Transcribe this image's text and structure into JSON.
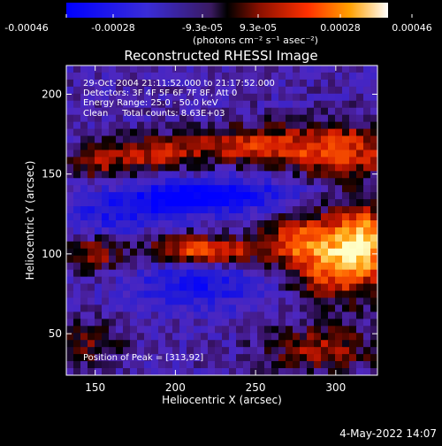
{
  "colorbar": {
    "ticks": [
      "-0.00046",
      "-0.00028",
      "-9.3e-05",
      "9.3e-05",
      "0.00028",
      "0.00046"
    ],
    "units": "(photons cm⁻² s⁻¹ asec⁻²)"
  },
  "title": "Reconstructed RHESSI Image",
  "annotations": [
    "29-Oct-2004 21:11:52.000 to 21:17:52.000",
    "Detectors: 3F 4F 5F 6F 7F 8F, Att 0",
    "Energy Range: 25.0 - 50.0 keV",
    "Clean     Total counts: 8.63E+03"
  ],
  "peak": "Position of Peak = [313,92]",
  "timestamp": "4-May-2022 14:07",
  "chart_data": {
    "type": "heatmap",
    "title": "Reconstructed RHESSI Image",
    "xlabel": "Heliocentric X (arcsec)",
    "ylabel": "Heliocentric Y (arcsec)",
    "xlim": [
      132,
      326
    ],
    "ylim": [
      24,
      218
    ],
    "xticks": [
      150,
      200,
      250,
      300
    ],
    "yticks": [
      50,
      100,
      150,
      200
    ],
    "xtick_labels": [
      "150",
      "200",
      "250",
      "300"
    ],
    "ytick_labels": [
      "50",
      "100",
      "150",
      "200"
    ],
    "colorbar_range": [
      -0.00046,
      0.00046
    ],
    "peak_position": [
      313,
      92
    ],
    "features": [
      {
        "x": 300,
        "y": 98,
        "sx": 20,
        "sy": 18,
        "amp": 1.0
      },
      {
        "x": 318,
        "y": 110,
        "sx": 10,
        "sy": 16,
        "amp": 0.75
      },
      {
        "x": 272,
        "y": 110,
        "sx": 14,
        "sy": 10,
        "amp": 0.5
      },
      {
        "x": 228,
        "y": 101,
        "sx": 22,
        "sy": 6,
        "amp": 0.6
      },
      {
        "x": 205,
        "y": 104,
        "sx": 16,
        "sy": 6,
        "amp": 0.45
      },
      {
        "x": 150,
        "y": 100,
        "sx": 14,
        "sy": 8,
        "amp": 0.5
      },
      {
        "x": 300,
        "y": 165,
        "sx": 28,
        "sy": 12,
        "amp": 0.75
      },
      {
        "x": 240,
        "y": 168,
        "sx": 26,
        "sy": 8,
        "amp": 0.6
      },
      {
        "x": 185,
        "y": 162,
        "sx": 18,
        "sy": 8,
        "amp": 0.55
      },
      {
        "x": 150,
        "y": 158,
        "sx": 12,
        "sy": 8,
        "amp": 0.5
      },
      {
        "x": 290,
        "y": 40,
        "sx": 26,
        "sy": 10,
        "amp": 0.5
      },
      {
        "x": 145,
        "y": 42,
        "sx": 14,
        "sy": 10,
        "amp": 0.4
      },
      {
        "x": 205,
        "y": 135,
        "sx": 24,
        "sy": 8,
        "amp": -0.8
      },
      {
        "x": 215,
        "y": 80,
        "sx": 30,
        "sy": 10,
        "amp": -0.5
      },
      {
        "x": 160,
        "y": 125,
        "sx": 20,
        "sy": 10,
        "amp": -0.4
      },
      {
        "x": 255,
        "y": 138,
        "sx": 22,
        "sy": 8,
        "amp": -0.4
      }
    ]
  }
}
